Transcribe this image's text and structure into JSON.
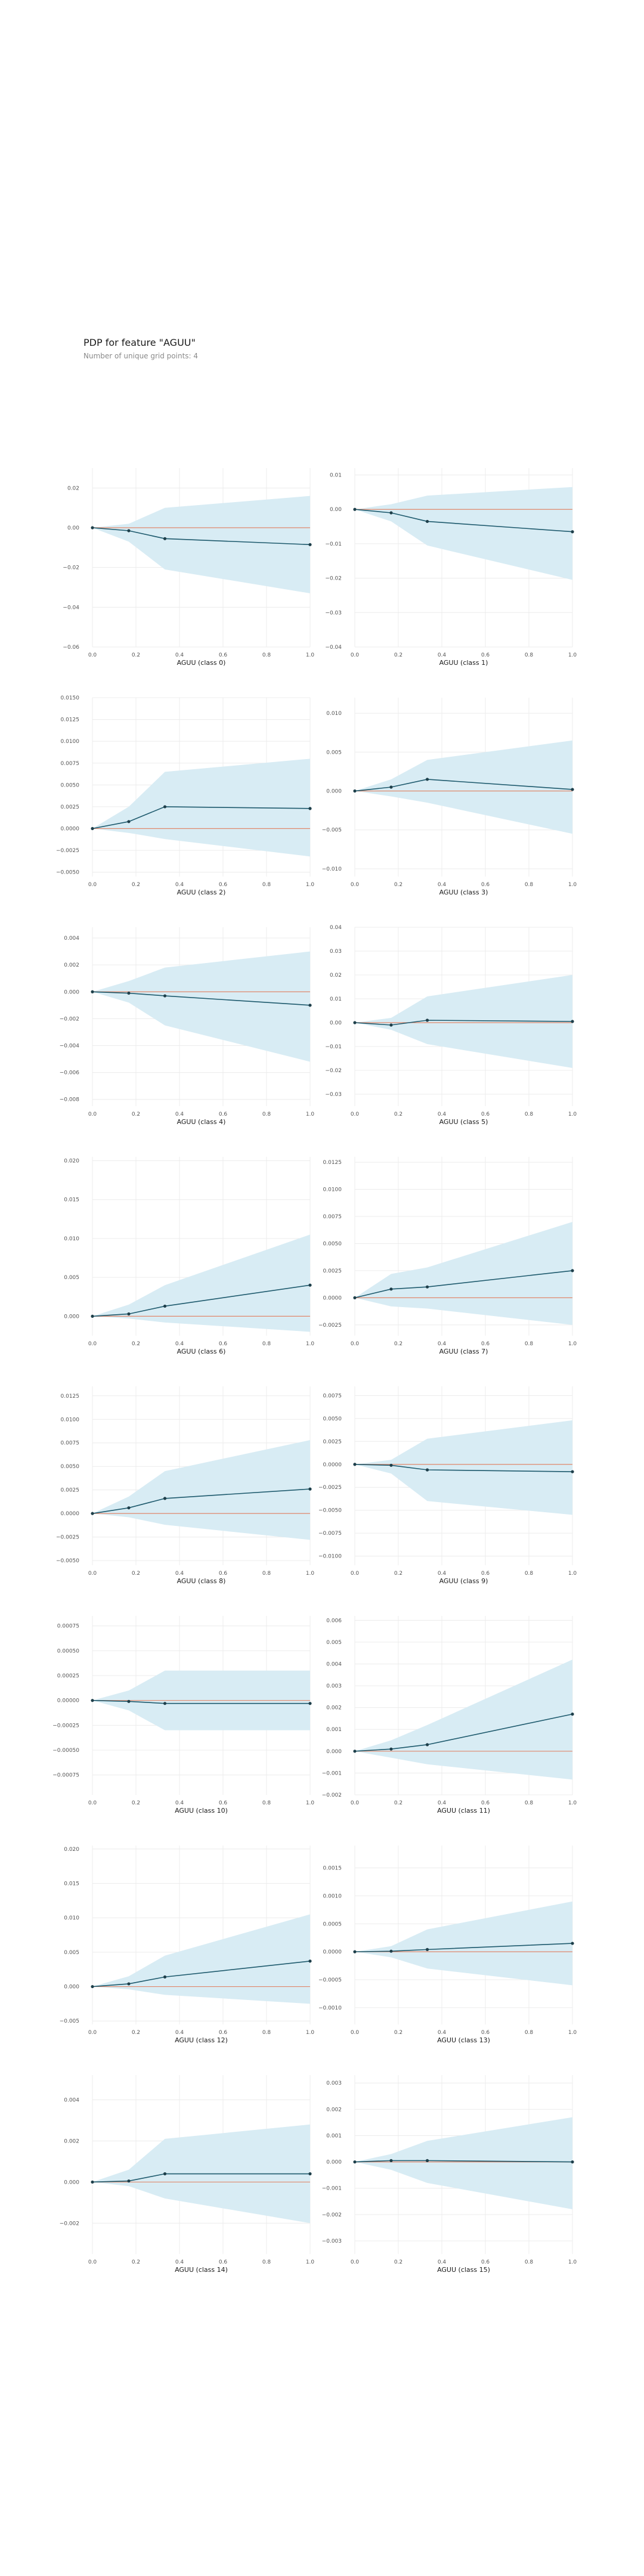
{
  "title": "PDP for feature \"AGUU\"",
  "subtitle": "Number of unique grid points: 4",
  "colors": {
    "band": "#d8ecf4",
    "line": "#1e5a6d",
    "zero": "#e0876b",
    "grid": "#ececec",
    "point": "#1e3f4a"
  },
  "chart_data": [
    {
      "type": "line",
      "xlabel": "AGUU (class 0)",
      "xlim": [
        0,
        1
      ],
      "ylim": [
        -0.06,
        0.03
      ],
      "xticks": [
        "0.0",
        "0.2",
        "0.4",
        "0.6",
        "0.8",
        "1.0"
      ],
      "yticks": [
        {
          "v": 0.02,
          "t": "0.02"
        },
        {
          "v": 0,
          "t": "0.00"
        },
        {
          "v": -0.02,
          "t": "−0.02"
        },
        {
          "v": -0.04,
          "t": "−0.04"
        },
        {
          "v": -0.06,
          "t": "−0.06"
        }
      ],
      "x": [
        0,
        0.167,
        0.333,
        1.0
      ],
      "y": [
        0,
        -0.0015,
        -0.0055,
        -0.0085
      ],
      "lower": [
        0,
        -0.007,
        -0.021,
        -0.033
      ],
      "upper": [
        0,
        0.002,
        0.01,
        0.016
      ]
    },
    {
      "type": "line",
      "xlabel": "AGUU (class 1)",
      "xlim": [
        0,
        1
      ],
      "ylim": [
        -0.04,
        0.012
      ],
      "xticks": [
        "0.0",
        "0.2",
        "0.4",
        "0.6",
        "0.8",
        "1.0"
      ],
      "yticks": [
        {
          "v": 0.01,
          "t": "0.01"
        },
        {
          "v": 0,
          "t": "0.00"
        },
        {
          "v": -0.01,
          "t": "−0.01"
        },
        {
          "v": -0.02,
          "t": "−0.02"
        },
        {
          "v": -0.03,
          "t": "−0.03"
        },
        {
          "v": -0.04,
          "t": "−0.04"
        }
      ],
      "x": [
        0,
        0.167,
        0.333,
        1.0
      ],
      "y": [
        0,
        -0.001,
        -0.0035,
        -0.0065
      ],
      "lower": [
        0,
        -0.0035,
        -0.0105,
        -0.0205
      ],
      "upper": [
        0,
        0.0015,
        0.004,
        0.0065
      ]
    },
    {
      "type": "line",
      "xlabel": "AGUU (class 2)",
      "xlim": [
        0,
        1
      ],
      "ylim": [
        -0.0055,
        0.015
      ],
      "xticks": [
        "0.0",
        "0.2",
        "0.4",
        "0.6",
        "0.8",
        "1.0"
      ],
      "yticks": [
        {
          "v": 0.015,
          "t": "0.0150"
        },
        {
          "v": 0.0125,
          "t": "0.0125"
        },
        {
          "v": 0.01,
          "t": "0.0100"
        },
        {
          "v": 0.0075,
          "t": "0.0075"
        },
        {
          "v": 0.005,
          "t": "0.0050"
        },
        {
          "v": 0.0025,
          "t": "0.0025"
        },
        {
          "v": 0,
          "t": "0.0000"
        },
        {
          "v": -0.0025,
          "t": "−0.0025"
        },
        {
          "v": -0.005,
          "t": "−0.0050"
        }
      ],
      "x": [
        0,
        0.167,
        0.333,
        1.0
      ],
      "y": [
        0,
        0.0008,
        0.0025,
        0.0023
      ],
      "lower": [
        0,
        -0.0005,
        -0.0012,
        -0.0032
      ],
      "upper": [
        0,
        0.0025,
        0.0065,
        0.008
      ]
    },
    {
      "type": "line",
      "xlabel": "AGUU (class 3)",
      "xlim": [
        0,
        1
      ],
      "ylim": [
        -0.011,
        0.012
      ],
      "xticks": [
        "0.0",
        "0.2",
        "0.4",
        "0.6",
        "0.8",
        "1.0"
      ],
      "yticks": [
        {
          "v": 0.01,
          "t": "0.010"
        },
        {
          "v": 0.005,
          "t": "0.005"
        },
        {
          "v": 0,
          "t": "0.000"
        },
        {
          "v": -0.005,
          "t": "−0.005"
        },
        {
          "v": -0.01,
          "t": "−0.010"
        }
      ],
      "x": [
        0,
        0.167,
        0.333,
        1.0
      ],
      "y": [
        0,
        0.0005,
        0.0015,
        0.0002
      ],
      "lower": [
        0,
        -0.0007,
        -0.0015,
        -0.0055
      ],
      "upper": [
        0,
        0.0015,
        0.004,
        0.0065
      ]
    },
    {
      "type": "line",
      "xlabel": "AGUU (class 4)",
      "xlim": [
        0,
        1
      ],
      "ylim": [
        -0.0085,
        0.0048
      ],
      "xticks": [
        "0.0",
        "0.2",
        "0.4",
        "0.6",
        "0.8",
        "1.0"
      ],
      "yticks": [
        {
          "v": 0.004,
          "t": "0.004"
        },
        {
          "v": 0.002,
          "t": "0.002"
        },
        {
          "v": 0,
          "t": "0.000"
        },
        {
          "v": -0.002,
          "t": "−0.002"
        },
        {
          "v": -0.004,
          "t": "−0.004"
        },
        {
          "v": -0.006,
          "t": "−0.006"
        },
        {
          "v": -0.008,
          "t": "−0.008"
        }
      ],
      "x": [
        0,
        0.167,
        0.333,
        1.0
      ],
      "y": [
        0,
        -0.0001,
        -0.0003,
        -0.001
      ],
      "lower": [
        0,
        -0.0008,
        -0.0025,
        -0.0052
      ],
      "upper": [
        0,
        0.0008,
        0.0018,
        0.003
      ]
    },
    {
      "type": "line",
      "xlabel": "AGUU (class 5)",
      "xlim": [
        0,
        1
      ],
      "ylim": [
        -0.035,
        0.04
      ],
      "xticks": [
        "0.0",
        "0.2",
        "0.4",
        "0.6",
        "0.8",
        "1.0"
      ],
      "yticks": [
        {
          "v": 0.04,
          "t": "0.04"
        },
        {
          "v": 0.03,
          "t": "0.03"
        },
        {
          "v": 0.02,
          "t": "0.02"
        },
        {
          "v": 0.01,
          "t": "0.01"
        },
        {
          "v": 0,
          "t": "0.00"
        },
        {
          "v": -0.01,
          "t": "−0.01"
        },
        {
          "v": -0.02,
          "t": "−0.02"
        },
        {
          "v": -0.03,
          "t": "−0.03"
        }
      ],
      "x": [
        0,
        0.167,
        0.333,
        1.0
      ],
      "y": [
        0,
        -0.001,
        0.001,
        0.0005
      ],
      "lower": [
        0,
        -0.003,
        -0.009,
        -0.019
      ],
      "upper": [
        0,
        0.002,
        0.011,
        0.02
      ]
    },
    {
      "type": "line",
      "xlabel": "AGUU (class 6)",
      "xlim": [
        0,
        1
      ],
      "ylim": [
        -0.0025,
        0.0205
      ],
      "xticks": [
        "0.0",
        "0.2",
        "0.4",
        "0.6",
        "0.8",
        "1.0"
      ],
      "yticks": [
        {
          "v": 0.02,
          "t": "0.020"
        },
        {
          "v": 0.015,
          "t": "0.015"
        },
        {
          "v": 0.01,
          "t": "0.010"
        },
        {
          "v": 0.005,
          "t": "0.005"
        },
        {
          "v": 0,
          "t": "0.000"
        }
      ],
      "x": [
        0,
        0.167,
        0.333,
        1.0
      ],
      "y": [
        0,
        0.0003,
        0.0013,
        0.004
      ],
      "lower": [
        0,
        -0.0003,
        -0.0008,
        -0.002
      ],
      "upper": [
        0,
        0.0015,
        0.004,
        0.0105
      ]
    },
    {
      "type": "line",
      "xlabel": "AGUU (class 7)",
      "xlim": [
        0,
        1
      ],
      "ylim": [
        -0.0035,
        0.013
      ],
      "xticks": [
        "0.0",
        "0.2",
        "0.4",
        "0.6",
        "0.8",
        "1.0"
      ],
      "yticks": [
        {
          "v": 0.0125,
          "t": "0.0125"
        },
        {
          "v": 0.01,
          "t": "0.0100"
        },
        {
          "v": 0.0075,
          "t": "0.0075"
        },
        {
          "v": 0.005,
          "t": "0.0050"
        },
        {
          "v": 0.0025,
          "t": "0.0025"
        },
        {
          "v": 0,
          "t": "0.0000"
        },
        {
          "v": -0.0025,
          "t": "−0.0025"
        }
      ],
      "x": [
        0,
        0.167,
        0.333,
        1.0
      ],
      "y": [
        0,
        0.0008,
        0.001,
        0.0025
      ],
      "lower": [
        0,
        -0.0008,
        -0.001,
        -0.0025
      ],
      "upper": [
        0,
        0.0022,
        0.0028,
        0.007
      ]
    },
    {
      "type": "line",
      "xlabel": "AGUU (class 8)",
      "xlim": [
        0,
        1
      ],
      "ylim": [
        -0.0055,
        0.0135
      ],
      "xticks": [
        "0.0",
        "0.2",
        "0.4",
        "0.6",
        "0.8",
        "1.0"
      ],
      "yticks": [
        {
          "v": 0.0125,
          "t": "0.0125"
        },
        {
          "v": 0.01,
          "t": "0.0100"
        },
        {
          "v": 0.0075,
          "t": "0.0075"
        },
        {
          "v": 0.005,
          "t": "0.0050"
        },
        {
          "v": 0.0025,
          "t": "0.0025"
        },
        {
          "v": 0,
          "t": "0.0000"
        },
        {
          "v": -0.0025,
          "t": "−0.0025"
        },
        {
          "v": -0.005,
          "t": "−0.0050"
        }
      ],
      "x": [
        0,
        0.167,
        0.333,
        1.0
      ],
      "y": [
        0,
        0.0006,
        0.0016,
        0.0026
      ],
      "lower": [
        0,
        -0.0004,
        -0.0012,
        -0.0028
      ],
      "upper": [
        0,
        0.0018,
        0.0045,
        0.0078
      ]
    },
    {
      "type": "line",
      "xlabel": "AGUU (class 9)",
      "xlim": [
        0,
        1
      ],
      "ylim": [
        -0.011,
        0.0085
      ],
      "xticks": [
        "0.0",
        "0.2",
        "0.4",
        "0.6",
        "0.8",
        "1.0"
      ],
      "yticks": [
        {
          "v": 0.0075,
          "t": "0.0075"
        },
        {
          "v": 0.005,
          "t": "0.0050"
        },
        {
          "v": 0.0025,
          "t": "0.0025"
        },
        {
          "v": 0,
          "t": "0.0000"
        },
        {
          "v": -0.0025,
          "t": "−0.0025"
        },
        {
          "v": -0.005,
          "t": "−0.0050"
        },
        {
          "v": -0.0075,
          "t": "−0.0075"
        },
        {
          "v": -0.01,
          "t": "−0.0100"
        }
      ],
      "x": [
        0,
        0.167,
        0.333,
        1.0
      ],
      "y": [
        0,
        -0.0001,
        -0.0006,
        -0.0008
      ],
      "lower": [
        0,
        -0.001,
        -0.004,
        -0.0055
      ],
      "upper": [
        0,
        0.0005,
        0.0028,
        0.0048
      ]
    },
    {
      "type": "line",
      "xlabel": "AGUU (class 10)",
      "xlim": [
        0,
        1
      ],
      "ylim": [
        -0.00095,
        0.00085
      ],
      "xticks": [
        "0.0",
        "0.2",
        "0.4",
        "0.6",
        "0.8",
        "1.0"
      ],
      "yticks": [
        {
          "v": 0.00075,
          "t": "0.00075"
        },
        {
          "v": 0.0005,
          "t": "0.00050"
        },
        {
          "v": 0.00025,
          "t": "0.00025"
        },
        {
          "v": 0,
          "t": "0.00000"
        },
        {
          "v": -0.00025,
          "t": "−0.00025"
        },
        {
          "v": -0.0005,
          "t": "−0.00050"
        },
        {
          "v": -0.00075,
          "t": "−0.00075"
        }
      ],
      "x": [
        0,
        0.167,
        0.333,
        1.0
      ],
      "y": [
        0,
        -1e-05,
        -3e-05,
        -3e-05
      ],
      "lower": [
        0,
        -0.0001,
        -0.0003,
        -0.0003
      ],
      "upper": [
        0,
        0.0001,
        0.0003,
        0.0003
      ]
    },
    {
      "type": "line",
      "xlabel": "AGUU (class 11)",
      "xlim": [
        0,
        1
      ],
      "ylim": [
        -0.002,
        0.0062
      ],
      "xticks": [
        "0.0",
        "0.2",
        "0.4",
        "0.6",
        "0.8",
        "1.0"
      ],
      "yticks": [
        {
          "v": 0.006,
          "t": "0.006"
        },
        {
          "v": 0.005,
          "t": "0.005"
        },
        {
          "v": 0.004,
          "t": "0.004"
        },
        {
          "v": 0.003,
          "t": "0.003"
        },
        {
          "v": 0.002,
          "t": "0.002"
        },
        {
          "v": 0.001,
          "t": "0.001"
        },
        {
          "v": 0,
          "t": "0.000"
        },
        {
          "v": -0.001,
          "t": "−0.001"
        },
        {
          "v": -0.002,
          "t": "−0.002"
        }
      ],
      "x": [
        0,
        0.167,
        0.333,
        1.0
      ],
      "y": [
        0,
        0.0001,
        0.0003,
        0.0017
      ],
      "lower": [
        0,
        -0.0003,
        -0.0006,
        -0.0013
      ],
      "upper": [
        0,
        0.0005,
        0.0012,
        0.0042
      ]
    },
    {
      "type": "line",
      "xlabel": "AGUU (class 12)",
      "xlim": [
        0,
        1
      ],
      "ylim": [
        -0.0055,
        0.0205
      ],
      "xticks": [
        "0.0",
        "0.2",
        "0.4",
        "0.6",
        "0.8",
        "1.0"
      ],
      "yticks": [
        {
          "v": 0.02,
          "t": "0.020"
        },
        {
          "v": 0.015,
          "t": "0.015"
        },
        {
          "v": 0.01,
          "t": "0.010"
        },
        {
          "v": 0.005,
          "t": "0.005"
        },
        {
          "v": 0,
          "t": "0.000"
        },
        {
          "v": -0.005,
          "t": "−0.005"
        }
      ],
      "x": [
        0,
        0.167,
        0.333,
        1.0
      ],
      "y": [
        0,
        0.0004,
        0.0014,
        0.0037
      ],
      "lower": [
        0,
        -0.0004,
        -0.0012,
        -0.0025
      ],
      "upper": [
        0,
        0.0015,
        0.0045,
        0.0105
      ]
    },
    {
      "type": "line",
      "xlabel": "AGUU (class 13)",
      "xlim": [
        0,
        1
      ],
      "ylim": [
        -0.0013,
        0.0019
      ],
      "xticks": [
        "0.0",
        "0.2",
        "0.4",
        "0.6",
        "0.8",
        "1.0"
      ],
      "yticks": [
        {
          "v": 0.0015,
          "t": "0.0015"
        },
        {
          "v": 0.001,
          "t": "0.0010"
        },
        {
          "v": 0.0005,
          "t": "0.0005"
        },
        {
          "v": 0,
          "t": "0.0000"
        },
        {
          "v": -0.0005,
          "t": "−0.0005"
        },
        {
          "v": -0.001,
          "t": "−0.0010"
        }
      ],
      "x": [
        0,
        0.167,
        0.333,
        1.0
      ],
      "y": [
        0,
        1e-05,
        4e-05,
        0.00015
      ],
      "lower": [
        0,
        -0.0001,
        -0.0003,
        -0.0006
      ],
      "upper": [
        0,
        0.0001,
        0.0004,
        0.0009
      ]
    },
    {
      "type": "line",
      "xlabel": "AGUU (class 14)",
      "xlim": [
        0,
        1
      ],
      "ylim": [
        -0.0035,
        0.0052
      ],
      "xticks": [
        "0.0",
        "0.2",
        "0.4",
        "0.6",
        "0.8",
        "1.0"
      ],
      "yticks": [
        {
          "v": 0.004,
          "t": "0.004"
        },
        {
          "v": 0.002,
          "t": "0.002"
        },
        {
          "v": 0,
          "t": "0.000"
        },
        {
          "v": -0.002,
          "t": "−0.002"
        }
      ],
      "x": [
        0,
        0.167,
        0.333,
        1.0
      ],
      "y": [
        0,
        5e-05,
        0.0004,
        0.0004
      ],
      "lower": [
        0,
        -0.0002,
        -0.0008,
        -0.002
      ],
      "upper": [
        0,
        0.0006,
        0.0021,
        0.0028
      ]
    },
    {
      "type": "line",
      "xlabel": "AGUU (class 15)",
      "xlim": [
        0,
        1
      ],
      "ylim": [
        -0.0035,
        0.0033
      ],
      "xticks": [
        "0.0",
        "0.2",
        "0.4",
        "0.6",
        "0.8",
        "1.0"
      ],
      "yticks": [
        {
          "v": 0.003,
          "t": "0.003"
        },
        {
          "v": 0.002,
          "t": "0.002"
        },
        {
          "v": 0.001,
          "t": "0.001"
        },
        {
          "v": 0,
          "t": "0.000"
        },
        {
          "v": -0.001,
          "t": "−0.001"
        },
        {
          "v": -0.002,
          "t": "−0.002"
        },
        {
          "v": -0.003,
          "t": "−0.003"
        }
      ],
      "x": [
        0,
        0.167,
        0.333,
        1.0
      ],
      "y": [
        0,
        5e-05,
        5e-05,
        0.0
      ],
      "lower": [
        0,
        -0.0003,
        -0.0008,
        -0.0018
      ],
      "upper": [
        0,
        0.0003,
        0.0008,
        0.0017
      ]
    }
  ]
}
